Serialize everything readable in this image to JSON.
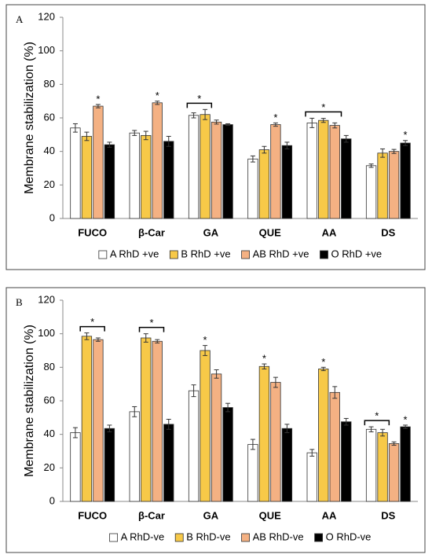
{
  "chart_data": [
    {
      "type": "bar",
      "panel": "A",
      "y_label": "Membrane stabilization (%)",
      "categories": [
        "FUCO",
        "β-Car",
        "GA",
        "QUE",
        "AA",
        "DS"
      ],
      "series": [
        {
          "name": "A RhD +ve",
          "color": "#ffffff",
          "values": [
            54,
            51,
            61.5,
            35.5,
            57,
            31.5
          ],
          "errors": [
            2.5,
            1.5,
            1.5,
            1.8,
            2.8,
            1
          ]
        },
        {
          "name": "B RhD +ve",
          "color": "#f7c948",
          "values": [
            49,
            49.5,
            62,
            41,
            58.5,
            39
          ],
          "errors": [
            2.5,
            2.5,
            3,
            2,
            1.2,
            2.5
          ]
        },
        {
          "name": "AB RhD +ve",
          "color": "#f4b183",
          "values": [
            67,
            69,
            57.5,
            56,
            55.5,
            40
          ],
          "errors": [
            1,
            1,
            1.2,
            1,
            1.5,
            1.2
          ]
        },
        {
          "name": "O RhD +ve",
          "color": "#000000",
          "values": [
            44,
            46,
            56,
            43.5,
            47.5,
            45
          ],
          "errors": [
            1.5,
            3,
            0.5,
            2,
            2,
            1.5
          ]
        }
      ],
      "ylim": [
        0,
        120
      ],
      "yticks": [
        0,
        20,
        40,
        60,
        80,
        100,
        120
      ],
      "annotations": [
        {
          "text": "*",
          "category": 0,
          "series": [
            2
          ]
        },
        {
          "text": "*",
          "category": 1,
          "series": [
            2
          ]
        },
        {
          "text": "*",
          "category": 2,
          "series": [
            0,
            1
          ]
        },
        {
          "text": "*",
          "category": 3,
          "series": [
            2
          ]
        },
        {
          "text": "*",
          "category": 4,
          "series": [
            0,
            1,
            2
          ]
        },
        {
          "text": "*",
          "category": 5,
          "series": [
            3
          ]
        }
      ]
    },
    {
      "type": "bar",
      "panel": "B",
      "y_label": "Membrane stabilization (%)",
      "categories": [
        "FUCO",
        "β-Car",
        "GA",
        "QUE",
        "AA",
        "DS"
      ],
      "series": [
        {
          "name": "A RhD-ve",
          "color": "#ffffff",
          "values": [
            41,
            53.5,
            66,
            34,
            29,
            43
          ],
          "errors": [
            3,
            3,
            3.5,
            3,
            2,
            1.5
          ]
        },
        {
          "name": "B RhD-ve",
          "color": "#f7c948",
          "values": [
            98.5,
            97.5,
            90,
            80.5,
            79,
            41
          ],
          "errors": [
            2,
            2.5,
            3,
            1.5,
            1,
            2
          ]
        },
        {
          "name": "AB RhD-ve",
          "color": "#f4b183",
          "values": [
            96.5,
            95.5,
            76,
            71,
            65,
            34.5
          ],
          "errors": [
            1,
            1,
            2.5,
            3,
            3.5,
            1
          ]
        },
        {
          "name": "O RhD-ve",
          "color": "#000000",
          "values": [
            43.5,
            46,
            56,
            43.5,
            47.5,
            44.5
          ],
          "errors": [
            2,
            3,
            2.5,
            2.5,
            2,
            1
          ]
        }
      ],
      "ylim": [
        0,
        120
      ],
      "yticks": [
        0,
        20,
        40,
        60,
        80,
        100,
        120
      ],
      "annotations": [
        {
          "text": "*",
          "category": 0,
          "series": [
            1,
            2
          ]
        },
        {
          "text": "*",
          "category": 1,
          "series": [
            1,
            2
          ]
        },
        {
          "text": "*",
          "category": 2,
          "series": [
            1
          ]
        },
        {
          "text": "*",
          "category": 3,
          "series": [
            1
          ]
        },
        {
          "text": "*",
          "category": 4,
          "series": [
            1
          ]
        },
        {
          "text": "*",
          "category": 5,
          "series": [
            0,
            1
          ]
        },
        {
          "text": "*",
          "category": 5,
          "series": [
            3
          ]
        }
      ]
    }
  ]
}
